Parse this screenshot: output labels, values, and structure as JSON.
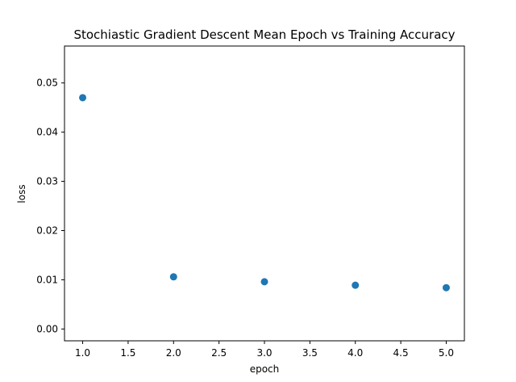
{
  "chart_data": {
    "type": "scatter",
    "title": "Stochiastic Gradient Descent Mean Epoch vs Training Accuracy",
    "xlabel": "epoch",
    "ylabel": "loss",
    "x": [
      1.0,
      2.0,
      3.0,
      4.0,
      5.0
    ],
    "y": [
      0.047,
      0.0106,
      0.0096,
      0.0089,
      0.0084
    ],
    "xlim": [
      0.8,
      5.2
    ],
    "ylim": [
      -0.0024,
      0.0575
    ],
    "xticks": [
      "1.0",
      "1.5",
      "2.0",
      "2.5",
      "3.0",
      "3.5",
      "4.0",
      "4.5",
      "5.0"
    ],
    "yticks": [
      "0.00",
      "0.01",
      "0.02",
      "0.03",
      "0.04",
      "0.05"
    ],
    "grid": false,
    "marker_color": "#1f77b4"
  }
}
